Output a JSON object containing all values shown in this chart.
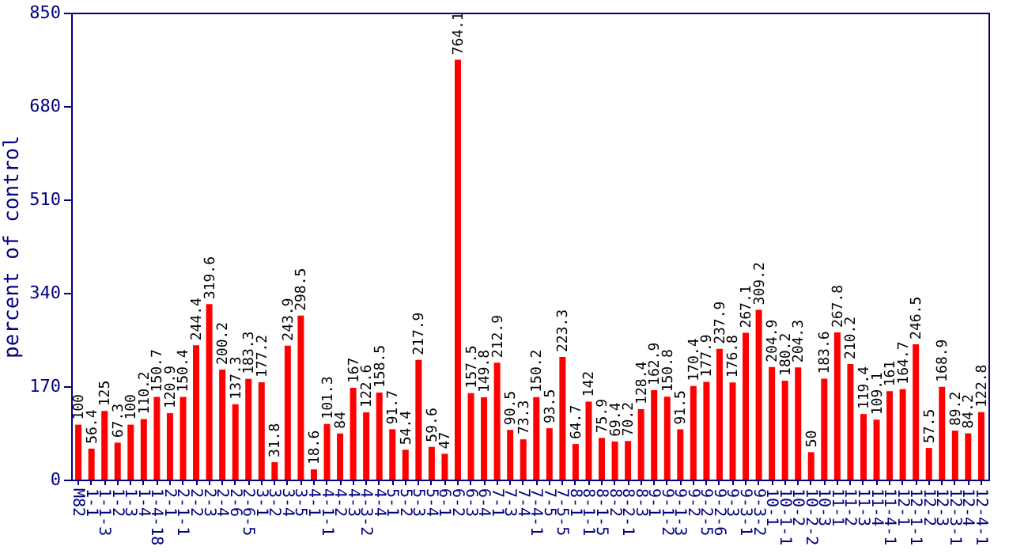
{
  "chart_data": {
    "type": "bar",
    "ylabel": "percent of control",
    "categories": [
      "M82",
      "1-1",
      "1-1-3",
      "1-2",
      "1-3",
      "1-4",
      "1-4-18",
      "2-1",
      "2-1-1",
      "2-2",
      "2-3",
      "2-4",
      "2-6",
      "2-6-5",
      "3-1",
      "3-2",
      "3-4",
      "3-5",
      "4-1",
      "4-1-1",
      "4-2",
      "4-3",
      "4-3-2",
      "4-4",
      "5-1",
      "5-2",
      "5-3",
      "5-4",
      "6-1",
      "6-2",
      "6-3",
      "6-4",
      "7-1",
      "7-3",
      "7-4",
      "7-4-1",
      "7-5",
      "7-5-5",
      "8-1",
      "8-1-1",
      "8-1-5",
      "8-2",
      "8-2-1",
      "8-3",
      "9-1",
      "9-1-2",
      "9-1-3",
      "9-2",
      "9-2-5",
      "9-2-6",
      "9-3",
      "9-3-1",
      "9-3-2",
      "10-1",
      "10-1-1",
      "10-2",
      "10-2-2",
      "10-3",
      "11-1",
      "11-2",
      "11-3",
      "11-4",
      "11-4-1",
      "12-1",
      "12-1-1",
      "12-2",
      "12-3",
      "12-3-1",
      "12-4",
      "12-4-1"
    ],
    "values": [
      100,
      56.4,
      125,
      67.3,
      100,
      110.2,
      150.7,
      120.9,
      150.4,
      244.4,
      319.6,
      200.2,
      137.3,
      183.3,
      177.2,
      31.8,
      243.9,
      298.5,
      18.6,
      101.3,
      84,
      167,
      122.6,
      158.5,
      91.7,
      54.4,
      217.9,
      59.6,
      47,
      764.1,
      157.5,
      149.8,
      212.9,
      90.5,
      73.3,
      150.2,
      93.5,
      223.3,
      64.7,
      142,
      75.9,
      69.4,
      70.2,
      128.4,
      162.9,
      150.8,
      91.5,
      170.4,
      177.9,
      237.9,
      176.8,
      267.1,
      309.2,
      204.9,
      180.2,
      204.3,
      50,
      183.6,
      267.8,
      210.2,
      119.4,
      109.1,
      161,
      164.7,
      246.5,
      57.5,
      168.9,
      89.2,
      84.2,
      122.8
    ],
    "color": "#ff0000",
    "ylim": [
      0,
      850
    ],
    "yticks": [
      0,
      170,
      340,
      510,
      680,
      850
    ],
    "data_labels": true,
    "grid": false
  }
}
